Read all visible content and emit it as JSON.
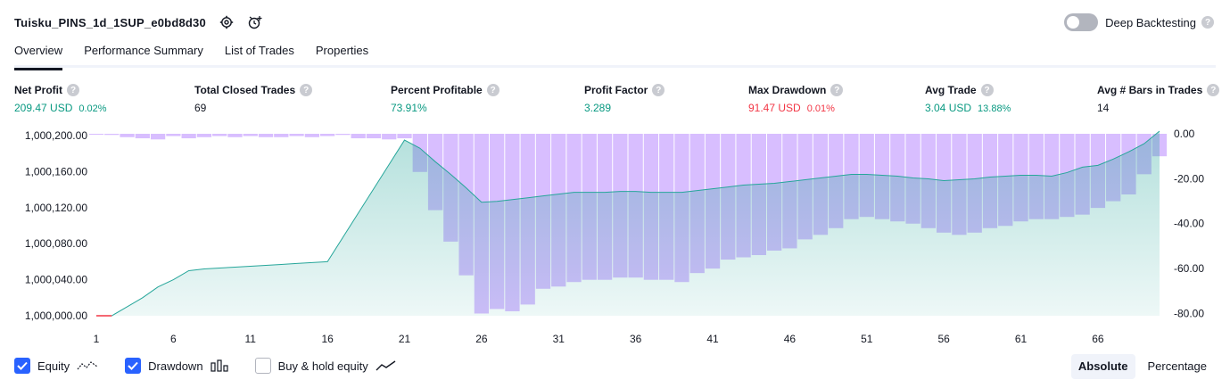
{
  "header": {
    "strategy_name": "Tuisku_PINS_1d_1SUP_e0bd8d30",
    "deep_backtesting_label": "Deep Backtesting",
    "help_glyph": "?"
  },
  "tabs": [
    {
      "label": "Overview",
      "active": true
    },
    {
      "label": "Performance Summary",
      "active": false
    },
    {
      "label": "List of Trades",
      "active": false
    },
    {
      "label": "Properties",
      "active": false
    }
  ],
  "metrics": [
    {
      "label": "Net Profit",
      "value": "209.47 USD",
      "pct": "0.02%",
      "tone": "pos"
    },
    {
      "label": "Total Closed Trades",
      "value": "69",
      "pct": "",
      "tone": "neu"
    },
    {
      "label": "Percent Profitable",
      "value": "73.91%",
      "pct": "",
      "tone": "pos"
    },
    {
      "label": "Profit Factor",
      "value": "3.289",
      "pct": "",
      "tone": "pos"
    },
    {
      "label": "Max Drawdown",
      "value": "91.47 USD",
      "pct": "0.01%",
      "tone": "neg"
    },
    {
      "label": "Avg Trade",
      "value": "3.04 USD",
      "pct": "13.88%",
      "tone": "pos"
    },
    {
      "label": "Avg # Bars in Trades",
      "value": "14",
      "pct": "",
      "tone": "neu"
    }
  ],
  "chart_data": {
    "type": "area",
    "x_ticks": [
      "1",
      "6",
      "11",
      "16",
      "21",
      "26",
      "31",
      "36",
      "41",
      "46",
      "51",
      "56",
      "61",
      "66"
    ],
    "x_range": [
      1,
      70
    ],
    "left_axis": {
      "ticks": [
        "1,000,000.00",
        "1,000,040.00",
        "1,000,080.00",
        "1,000,120.00",
        "1,000,160.00",
        "1,000,200.00"
      ],
      "range": [
        1000000,
        1000202
      ]
    },
    "right_axis": {
      "ticks": [
        "0.00",
        "-20.00",
        "-40.00",
        "-60.00",
        "-80.00"
      ],
      "range": [
        -81,
        0
      ]
    },
    "series": [
      {
        "name": "Equity",
        "x": [
          1,
          2,
          3,
          4,
          5,
          6,
          7,
          8,
          9,
          10,
          11,
          12,
          13,
          14,
          15,
          16,
          17,
          18,
          19,
          20,
          21,
          22,
          23,
          24,
          25,
          26,
          27,
          28,
          29,
          30,
          31,
          32,
          33,
          34,
          35,
          36,
          37,
          38,
          39,
          40,
          41,
          42,
          43,
          44,
          45,
          46,
          47,
          48,
          49,
          50,
          51,
          52,
          53,
          54,
          55,
          56,
          57,
          58,
          59,
          60,
          61,
          62,
          63,
          64,
          65,
          66,
          67,
          68,
          69,
          70
        ],
        "values": [
          1000000,
          1000000,
          1000010,
          1000020,
          1000032,
          1000040,
          1000050,
          1000052,
          1000053,
          1000054,
          1000055,
          1000056,
          1000057,
          1000058,
          1000059,
          1000060,
          1000087,
          1000114,
          1000141,
          1000168,
          1000195,
          1000186,
          1000171,
          1000157,
          1000142,
          1000126,
          1000127,
          1000129,
          1000131,
          1000133,
          1000135,
          1000137,
          1000137,
          1000137,
          1000138,
          1000138,
          1000137,
          1000137,
          1000137,
          1000139,
          1000141,
          1000143,
          1000145,
          1000146,
          1000147,
          1000149,
          1000151,
          1000153,
          1000155,
          1000157,
          1000157,
          1000156,
          1000155,
          1000153,
          1000152,
          1000150,
          1000151,
          1000152,
          1000154,
          1000155,
          1000156,
          1000156,
          1000155,
          1000159,
          1000165,
          1000167,
          1000174,
          1000182,
          1000191,
          1000205
        ]
      },
      {
        "name": "Drawdown",
        "x": [
          1,
          2,
          3,
          4,
          5,
          6,
          7,
          8,
          9,
          10,
          11,
          12,
          13,
          14,
          15,
          16,
          17,
          18,
          19,
          20,
          21,
          22,
          23,
          24,
          25,
          26,
          27,
          28,
          29,
          30,
          31,
          32,
          33,
          34,
          35,
          36,
          37,
          38,
          39,
          40,
          41,
          42,
          43,
          44,
          45,
          46,
          47,
          48,
          49,
          50,
          51,
          52,
          53,
          54,
          55,
          56,
          57,
          58,
          59,
          60,
          61,
          62,
          63,
          64,
          65,
          66,
          67,
          68,
          69,
          70
        ],
        "values": [
          0,
          -0.5,
          -1.5,
          -2,
          -2.5,
          -1,
          -2,
          -1.5,
          -1,
          -1.5,
          -1,
          -1.5,
          -1.5,
          -1,
          -1.5,
          -1,
          -0.5,
          -2,
          -2,
          -2.5,
          -2,
          -17,
          -34,
          -48,
          -63,
          -80,
          -78,
          -79,
          -76,
          -69,
          -68,
          -66,
          -65,
          -65,
          -64,
          -64,
          -65,
          -65,
          -66,
          -62,
          -60,
          -56,
          -55,
          -54,
          -52,
          -51,
          -47,
          -45,
          -42,
          -38,
          -37,
          -38,
          -39,
          -40,
          -42,
          -44,
          -45,
          -44,
          -42,
          -41,
          -39,
          -38,
          -38,
          -37,
          -36,
          -33,
          -30,
          -27,
          -18,
          -10
        ]
      }
    ],
    "colors": {
      "equity_line": "#26a69a",
      "equity_fill": "#26a69a",
      "drawdown_bar": "#b39ddb",
      "drawdown_bar_fill": "#d1b3ff",
      "negative_segment": "#f23645"
    }
  },
  "legend": [
    {
      "label": "Equity",
      "checked": true,
      "icon": "equity-line-icon"
    },
    {
      "label": "Drawdown",
      "checked": true,
      "icon": "drawdown-bars-icon"
    },
    {
      "label": "Buy & hold equity",
      "checked": false,
      "icon": "buy-hold-line-icon"
    }
  ],
  "scale_buttons": [
    {
      "label": "Absolute",
      "active": true
    },
    {
      "label": "Percentage",
      "active": false
    }
  ]
}
